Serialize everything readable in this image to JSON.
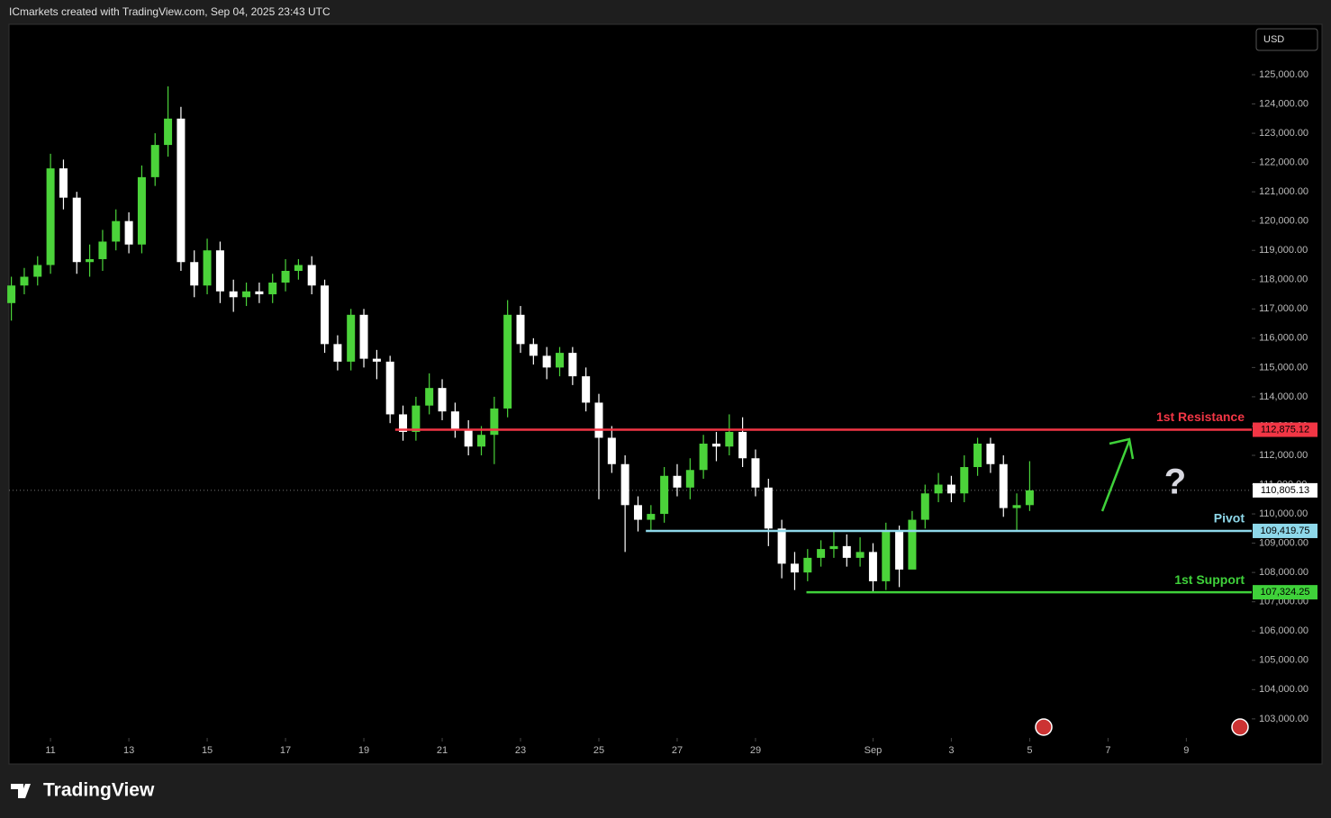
{
  "header": "ICmarkets created with TradingView.com, Sep 04, 2025 23:43 UTC",
  "currency": "USD",
  "brand": "TradingView",
  "chart_data": {
    "type": "candlestick",
    "up_color": "#4bd33a",
    "down_color": "#ffffff",
    "x": [
      10,
      10.33,
      10.67,
      11,
      11.33,
      11.67,
      12,
      12.33,
      12.67,
      13,
      13.33,
      13.67,
      14,
      14.33,
      14.67,
      15,
      15.33,
      15.67,
      16,
      16.33,
      16.67,
      17,
      17.33,
      17.67,
      18,
      18.33,
      18.67,
      19,
      19.33,
      19.67,
      20,
      20.33,
      20.67,
      21,
      21.33,
      21.67,
      22,
      22.33,
      22.67,
      23,
      23.33,
      23.67,
      24,
      24.33,
      24.67,
      25,
      25.33,
      25.67,
      26,
      26.33,
      26.67,
      27,
      27.33,
      27.67,
      28,
      28.33,
      28.67,
      29,
      29.33,
      29.67,
      30,
      30.33,
      30.67,
      31,
      31.33,
      31.67,
      32,
      32.33,
      32.67,
      33,
      33.33,
      33.67,
      34,
      34.33,
      34.67,
      35,
      35.33,
      35.67,
      36
    ],
    "open": [
      117200,
      117800,
      118100,
      118500,
      121800,
      120800,
      118600,
      118700,
      119300,
      120000,
      119200,
      121500,
      122600,
      123500,
      118600,
      117800,
      119000,
      117600,
      117400,
      117600,
      117500,
      117900,
      118300,
      118500,
      117800,
      115800,
      115200,
      116800,
      115300,
      115200,
      113400,
      112800,
      113700,
      114300,
      113500,
      112900,
      112300,
      112700,
      113600,
      116800,
      115800,
      115400,
      115000,
      115500,
      114700,
      113800,
      112600,
      111700,
      110300,
      109800,
      110000,
      111300,
      110900,
      111500,
      112400,
      112300,
      112800,
      111900,
      110900,
      109500,
      108300,
      108000,
      108500,
      108800,
      108900,
      108500,
      108700,
      107700,
      109400,
      108100,
      109800,
      110700,
      111000,
      110700,
      111600,
      112400,
      111700,
      110200,
      110300
    ],
    "high": [
      118100,
      118400,
      118800,
      122300,
      122100,
      121000,
      119200,
      119700,
      120400,
      120300,
      121900,
      123000,
      124600,
      123900,
      119000,
      119400,
      119300,
      118000,
      117900,
      117900,
      118200,
      118700,
      118700,
      118800,
      118000,
      116100,
      117000,
      117000,
      115600,
      115400,
      113700,
      114000,
      114800,
      114600,
      113800,
      113200,
      113000,
      114000,
      117300,
      117100,
      116000,
      115700,
      115700,
      115700,
      115000,
      114100,
      113000,
      112000,
      110600,
      110300,
      111600,
      111700,
      111900,
      112700,
      112800,
      113400,
      113300,
      112200,
      111200,
      109800,
      108700,
      108800,
      109100,
      109400,
      109300,
      109200,
      109000,
      109700,
      109600,
      110100,
      111000,
      111400,
      111300,
      112000,
      112600,
      112600,
      112000,
      110700,
      111800
    ],
    "low": [
      116600,
      117500,
      117800,
      118200,
      120400,
      118200,
      118100,
      118300,
      119000,
      118900,
      118900,
      121200,
      122200,
      118300,
      117400,
      117500,
      117200,
      116900,
      117100,
      117200,
      117200,
      117600,
      118000,
      117500,
      115500,
      114900,
      114900,
      115000,
      114600,
      113100,
      112500,
      112500,
      113400,
      113200,
      112600,
      112000,
      112000,
      111700,
      113300,
      115500,
      115100,
      114600,
      114700,
      114400,
      113500,
      110500,
      111400,
      108700,
      109400,
      109400,
      109700,
      110600,
      110500,
      111200,
      111800,
      112000,
      111600,
      110600,
      108900,
      107800,
      107400,
      107700,
      108200,
      108500,
      108200,
      108200,
      107300,
      107400,
      107500,
      108300,
      109500,
      110400,
      110400,
      110400,
      111300,
      111400,
      109900,
      109400,
      110100
    ],
    "close": [
      117800,
      118100,
      118500,
      121800,
      120800,
      118600,
      118700,
      119300,
      120000,
      119200,
      121500,
      122600,
      123500,
      118600,
      117800,
      119000,
      117600,
      117400,
      117600,
      117500,
      117900,
      118300,
      118500,
      117800,
      115800,
      115200,
      116800,
      115300,
      115200,
      113400,
      112800,
      113700,
      114300,
      113500,
      112900,
      112300,
      112700,
      113600,
      116800,
      115800,
      115400,
      115000,
      115500,
      114700,
      113800,
      112600,
      111700,
      110300,
      109800,
      110000,
      111300,
      110900,
      111500,
      112400,
      112300,
      112800,
      111900,
      110900,
      109500,
      108300,
      108000,
      108500,
      108800,
      108900,
      108500,
      108700,
      107700,
      109400,
      108100,
      109800,
      110700,
      111000,
      110700,
      111600,
      112400,
      111700,
      110200,
      110300,
      110805.13
    ],
    "xlim": [
      9.94,
      41.67
    ],
    "xticks": [
      11,
      13,
      15,
      17,
      19,
      21,
      23,
      25,
      27,
      29,
      {
        "value": 32,
        "label": "Sep"
      },
      {
        "value": 34,
        "label": "3"
      },
      {
        "value": 36,
        "label": "5"
      },
      {
        "value": 38,
        "label": "7"
      },
      {
        "value": 40,
        "label": "9"
      }
    ],
    "ylim": [
      102350,
      126690
    ],
    "yticks": [
      {
        "value": 103000,
        "label": "103,000.00"
      },
      {
        "value": 104000,
        "label": "104,000.00"
      },
      {
        "value": 105000,
        "label": "105,000.00"
      },
      {
        "value": 106000,
        "label": "106,000.00"
      },
      {
        "value": 107000,
        "label": "107,000.00"
      },
      {
        "value": 108000,
        "label": "108,000.00"
      },
      {
        "value": 109000,
        "label": "109,000.00"
      },
      {
        "value": 110000,
        "label": "110,000.00"
      },
      {
        "value": 111000,
        "label": "111,000.00"
      },
      {
        "value": 112000,
        "label": "112,000.00"
      },
      {
        "value": 113000,
        "label": "113,000.00"
      },
      {
        "value": 114000,
        "label": "114,000.00"
      },
      {
        "value": 115000,
        "label": "115,000.00"
      },
      {
        "value": 116000,
        "label": "116,000.00"
      },
      {
        "value": 117000,
        "label": "117,000.00"
      },
      {
        "value": 118000,
        "label": "118,000.00"
      },
      {
        "value": 119000,
        "label": "119,000.00"
      },
      {
        "value": 120000,
        "label": "120,000.00"
      },
      {
        "value": 121000,
        "label": "121,000.00"
      },
      {
        "value": 122000,
        "label": "122,000.00"
      },
      {
        "value": 123000,
        "label": "123,000.00"
      },
      {
        "value": 124000,
        "label": "124,000.00"
      },
      {
        "value": 125000,
        "label": "125,000.00"
      }
    ],
    "levels": [
      {
        "name": "1st Resistance",
        "value": 112875.12,
        "label": "112,875.12",
        "color": "#f23645",
        "start": 19.8
      },
      {
        "name": "Pivot",
        "value": 109419.75,
        "label": "109,419.75",
        "color": "#8ed8ea",
        "start": 26.2
      },
      {
        "name": "1st Support",
        "value": 107324.25,
        "label": "107,324.25",
        "color": "#3fd13a",
        "start": 30.3
      }
    ],
    "last_price": {
      "value": 110805.13,
      "label": "110,805.13"
    },
    "annotation": "?"
  }
}
